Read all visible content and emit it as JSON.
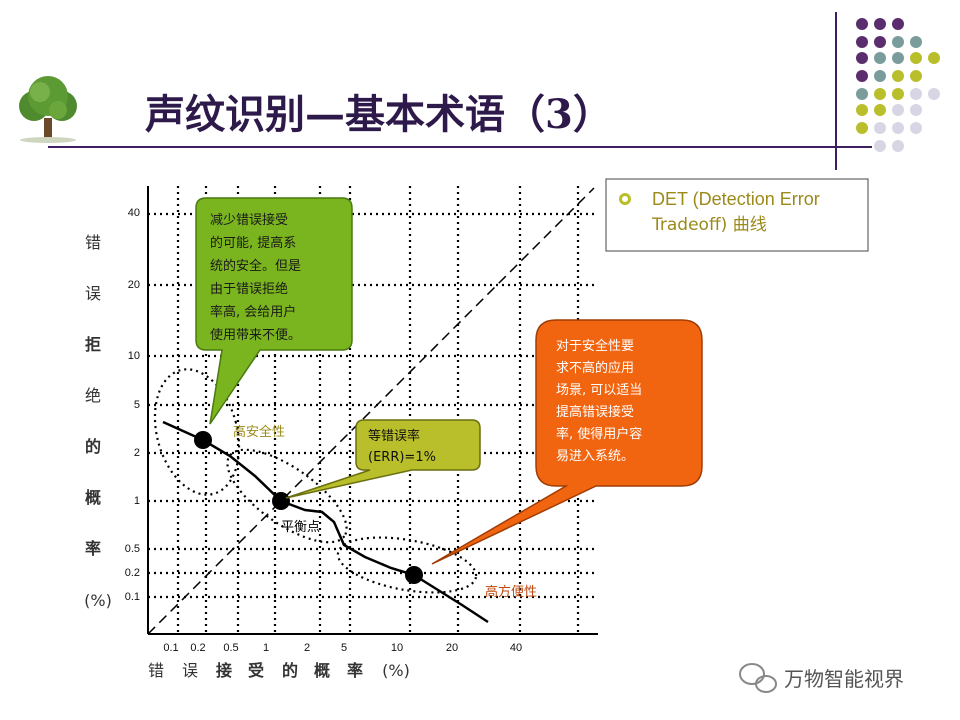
{
  "slide": {
    "title": "声纹识别—基本术语（3）",
    "legend_text_line1": "DET (Detection Error",
    "legend_text_line2": "Tradeoff) 曲线",
    "watermark": "万物智能视界",
    "colors": {
      "title": "#2d1a4a",
      "accent_purple": "#3d1e5e",
      "green_callout": "#7ab41e",
      "orange_callout": "#f26510",
      "olive_text": "#9b8a1a"
    }
  },
  "diagram": {
    "y_axis_chars": [
      "错",
      "误",
      "拒",
      "绝",
      "的",
      "概",
      "率",
      "(%)"
    ],
    "x_axis_chars": [
      "错",
      "误",
      "接",
      "受",
      "的",
      "概",
      "率",
      "(%)"
    ],
    "y_ticks": [
      "40",
      "20",
      "10",
      "5",
      "2",
      "1",
      "0.5",
      "0.2",
      "0.1"
    ],
    "x_ticks": [
      "0.1",
      "0.2",
      "0.5",
      "1",
      "2",
      "5",
      "10",
      "20",
      "40"
    ],
    "green_callout_lines": [
      "减少错误接受",
      "的可能, 提高系",
      "统的安全。但是",
      "由于错误拒绝",
      "率高, 会给用户",
      "使用带来不便。"
    ],
    "orange_callout_lines": [
      "对于安全性要",
      "求不高的应用",
      "场景, 可以适当",
      "提高错误接受",
      "率, 使得用户容",
      "易进入系统。"
    ],
    "err_callout_lines": [
      "等错误率",
      "(ERR)=1%"
    ],
    "label_high_security": "高安全性",
    "label_balance_point": "平衡点",
    "label_high_convenience": "高方便性"
  }
}
